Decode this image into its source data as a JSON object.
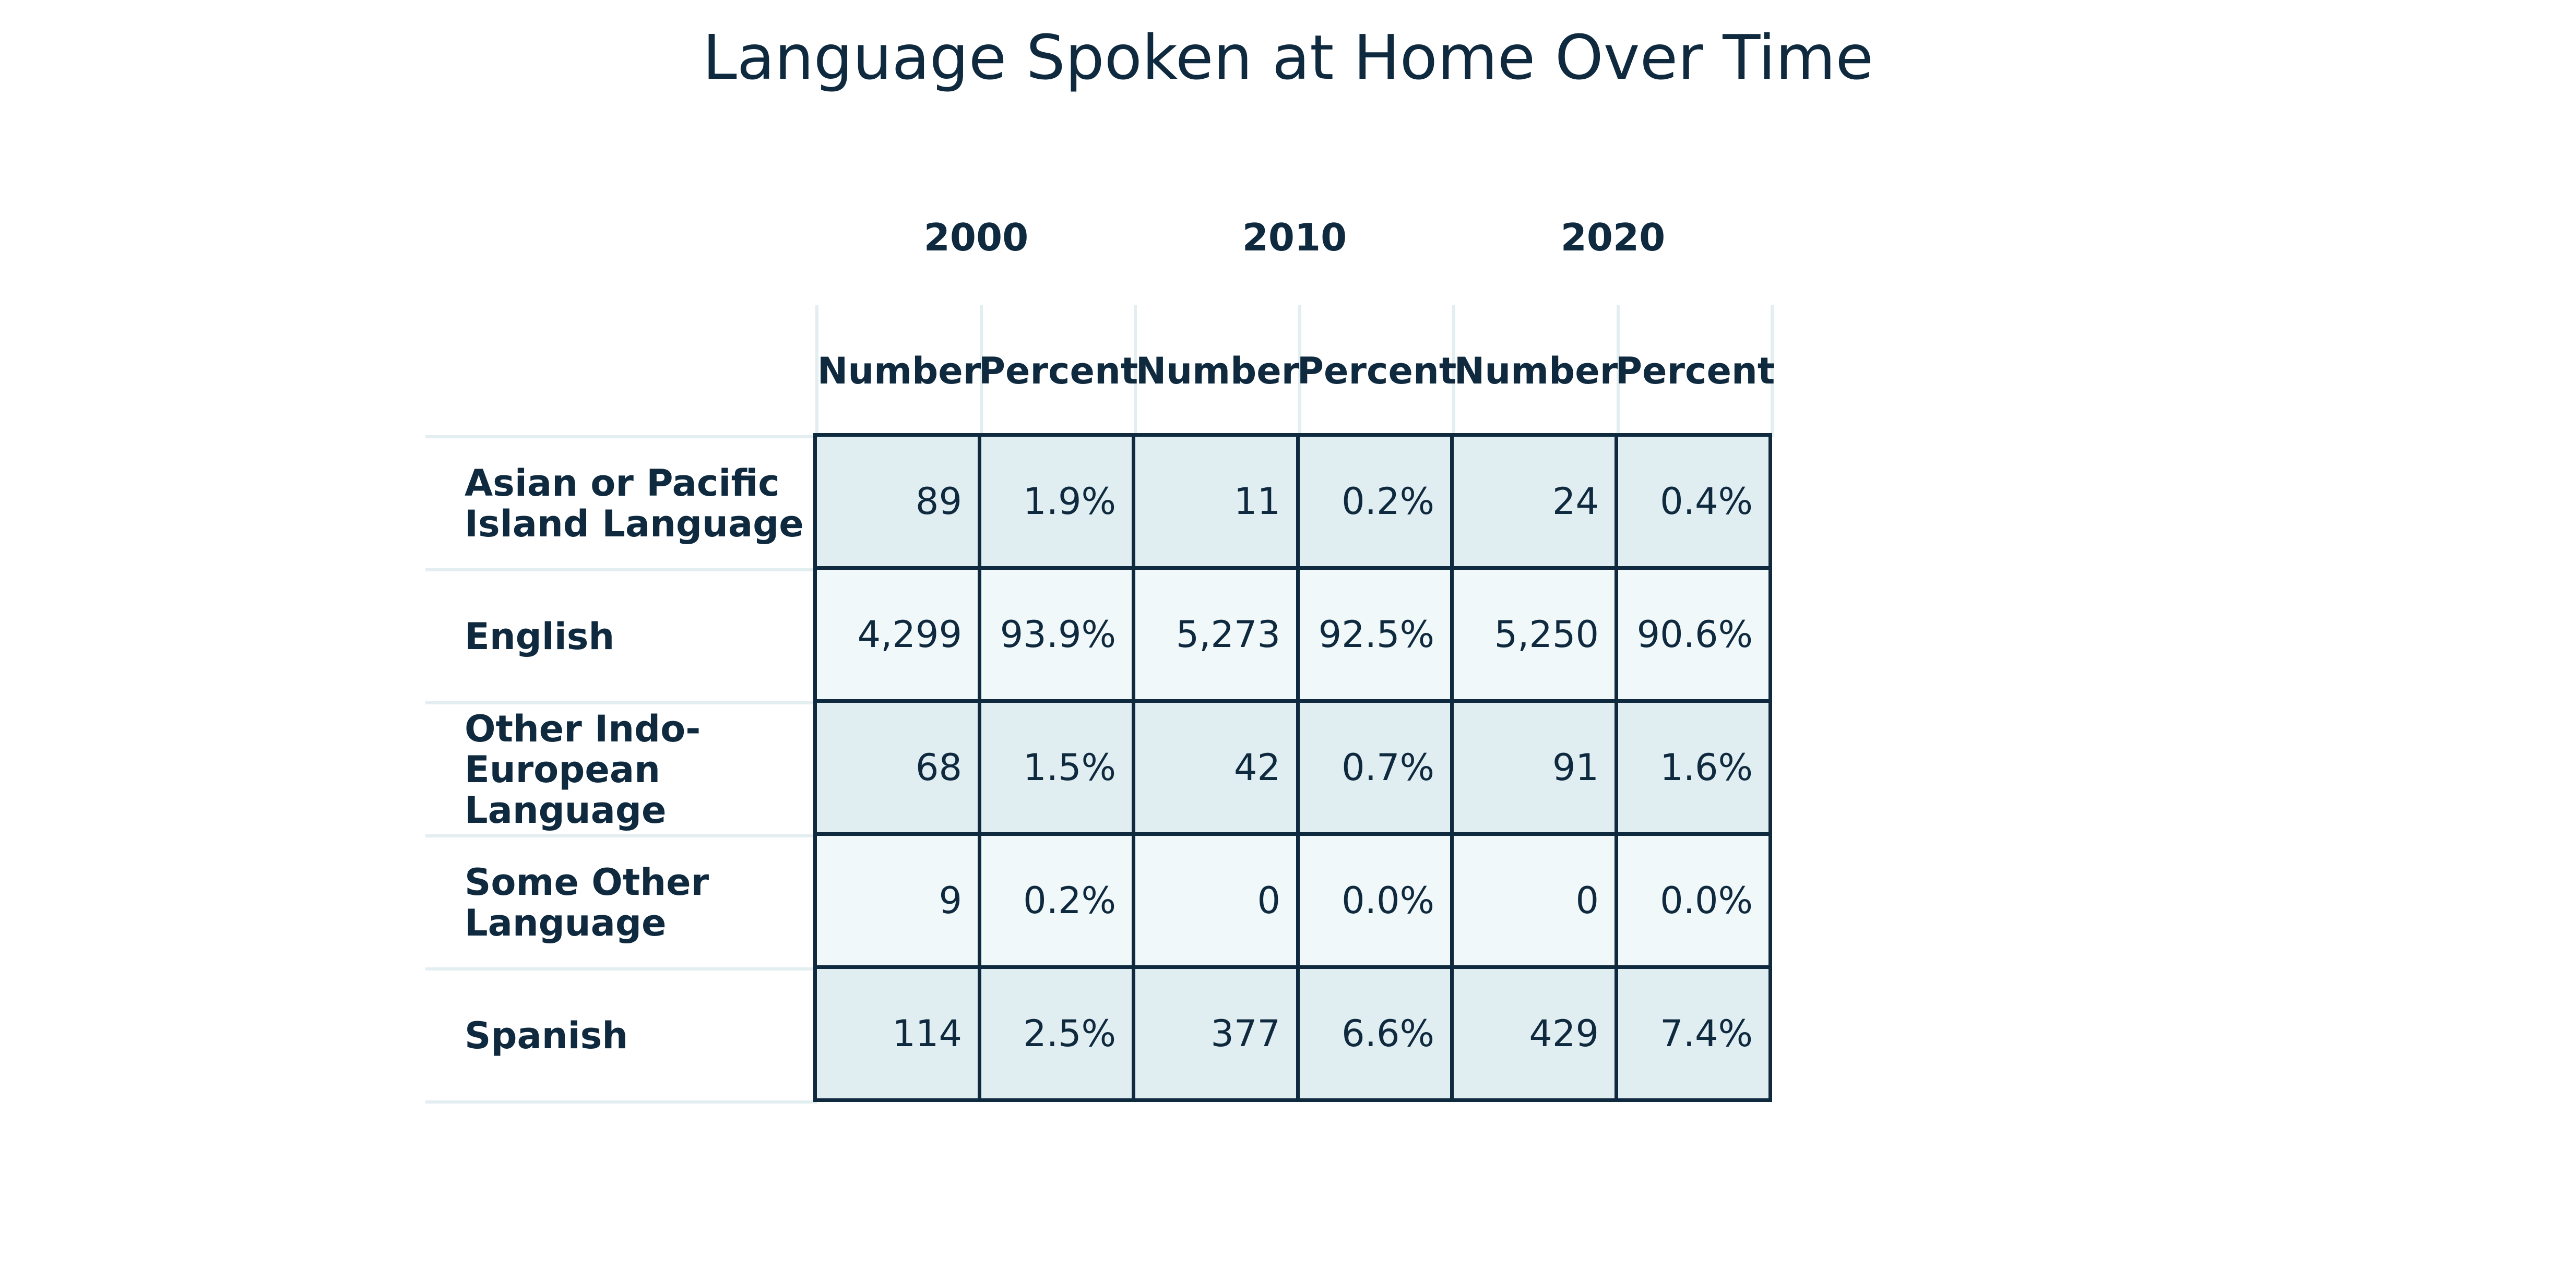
{
  "chart_data": {
    "type": "table",
    "title": "Language Spoken at Home Over Time",
    "years": [
      "2000",
      "2010",
      "2020"
    ],
    "subheaders": [
      "Number",
      "Percent",
      "Number",
      "Percent",
      "Number",
      "Percent"
    ],
    "rows": [
      {
        "label": "Asian or Pacific Island Language",
        "values": [
          "89",
          "1.9%",
          "11",
          "0.2%",
          "24",
          "0.4%"
        ]
      },
      {
        "label": "English",
        "values": [
          "4,299",
          "93.9%",
          "5,273",
          "92.5%",
          "5,250",
          "90.6%"
        ]
      },
      {
        "label": "Other Indo-European Language",
        "values": [
          "68",
          "1.5%",
          "42",
          "0.7%",
          "91",
          "1.6%"
        ]
      },
      {
        "label": "Some Other Language",
        "values": [
          "9",
          "0.2%",
          "0",
          "0.0%",
          "0",
          "0.0%"
        ]
      },
      {
        "label": "Spanish",
        "values": [
          "114",
          "2.5%",
          "377",
          "6.6%",
          "429",
          "7.4%"
        ]
      }
    ]
  },
  "colors": {
    "text": "#0f2a3f",
    "band_a": "#e1eef1",
    "band_b": "#f1f8f9",
    "grid": "#0f2a3f",
    "rule": "#e3eef1"
  }
}
